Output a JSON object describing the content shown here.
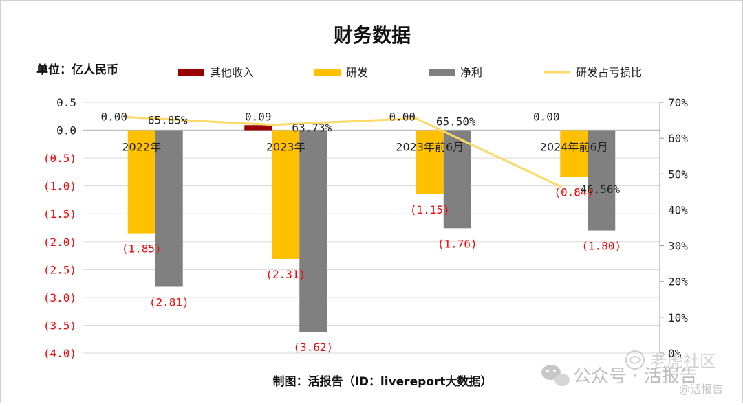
{
  "chart_data": {
    "type": "bar",
    "title": "财务数据",
    "unit_label": "单位：亿人民币",
    "source": "制图：活报告（ID：livereport大数据）",
    "categories": [
      "2022年",
      "2023年",
      "2023年前6月",
      "2024年前6月"
    ],
    "series": [
      {
        "name": "其他收入",
        "type": "bar",
        "axis": "left",
        "color": "#990000",
        "values": [
          0.0,
          0.09,
          0.0,
          0.0
        ],
        "labels": [
          "0.00",
          "0.09",
          "0.00",
          "0.00"
        ]
      },
      {
        "name": "研发",
        "type": "bar",
        "axis": "left",
        "color": "#ffc000",
        "values": [
          -1.85,
          -2.31,
          -1.15,
          -0.84
        ],
        "labels": [
          "(1.85)",
          "(2.31)",
          "(1.15)",
          "(0.84)"
        ]
      },
      {
        "name": "净利",
        "type": "bar",
        "axis": "left",
        "color": "#808080",
        "values": [
          -2.81,
          -3.62,
          -1.76,
          -1.8
        ],
        "labels": [
          "(2.81)",
          "(3.62)",
          "(1.76)",
          "(1.80)"
        ]
      },
      {
        "name": "研发占亏损比",
        "type": "line",
        "axis": "right",
        "color": "#ffd966",
        "values": [
          65.85,
          63.73,
          65.5,
          46.56
        ],
        "labels": [
          "65.85%",
          "63.73%",
          "65.50%",
          "46.56%"
        ]
      }
    ],
    "y_left": {
      "min": -4.0,
      "max": 0.5,
      "step": 0.5,
      "ticks": [
        "0.5",
        "0.0",
        "(0.5)",
        "(1.0)",
        "(1.5)",
        "(2.0)",
        "(2.5)",
        "(3.0)",
        "(3.5)",
        "(4.0)"
      ],
      "negative_color": "#ff0000"
    },
    "y_right": {
      "min": 0,
      "max": 70,
      "step": 10,
      "ticks": [
        "0%",
        "10%",
        "20%",
        "30%",
        "40%",
        "50%",
        "60%",
        "70%"
      ]
    },
    "legend_position": "top",
    "grid": true,
    "watermark": {
      "line1": "公众号 · 活报告",
      "line2": "@活报告",
      "brand": "老虎社区"
    }
  }
}
